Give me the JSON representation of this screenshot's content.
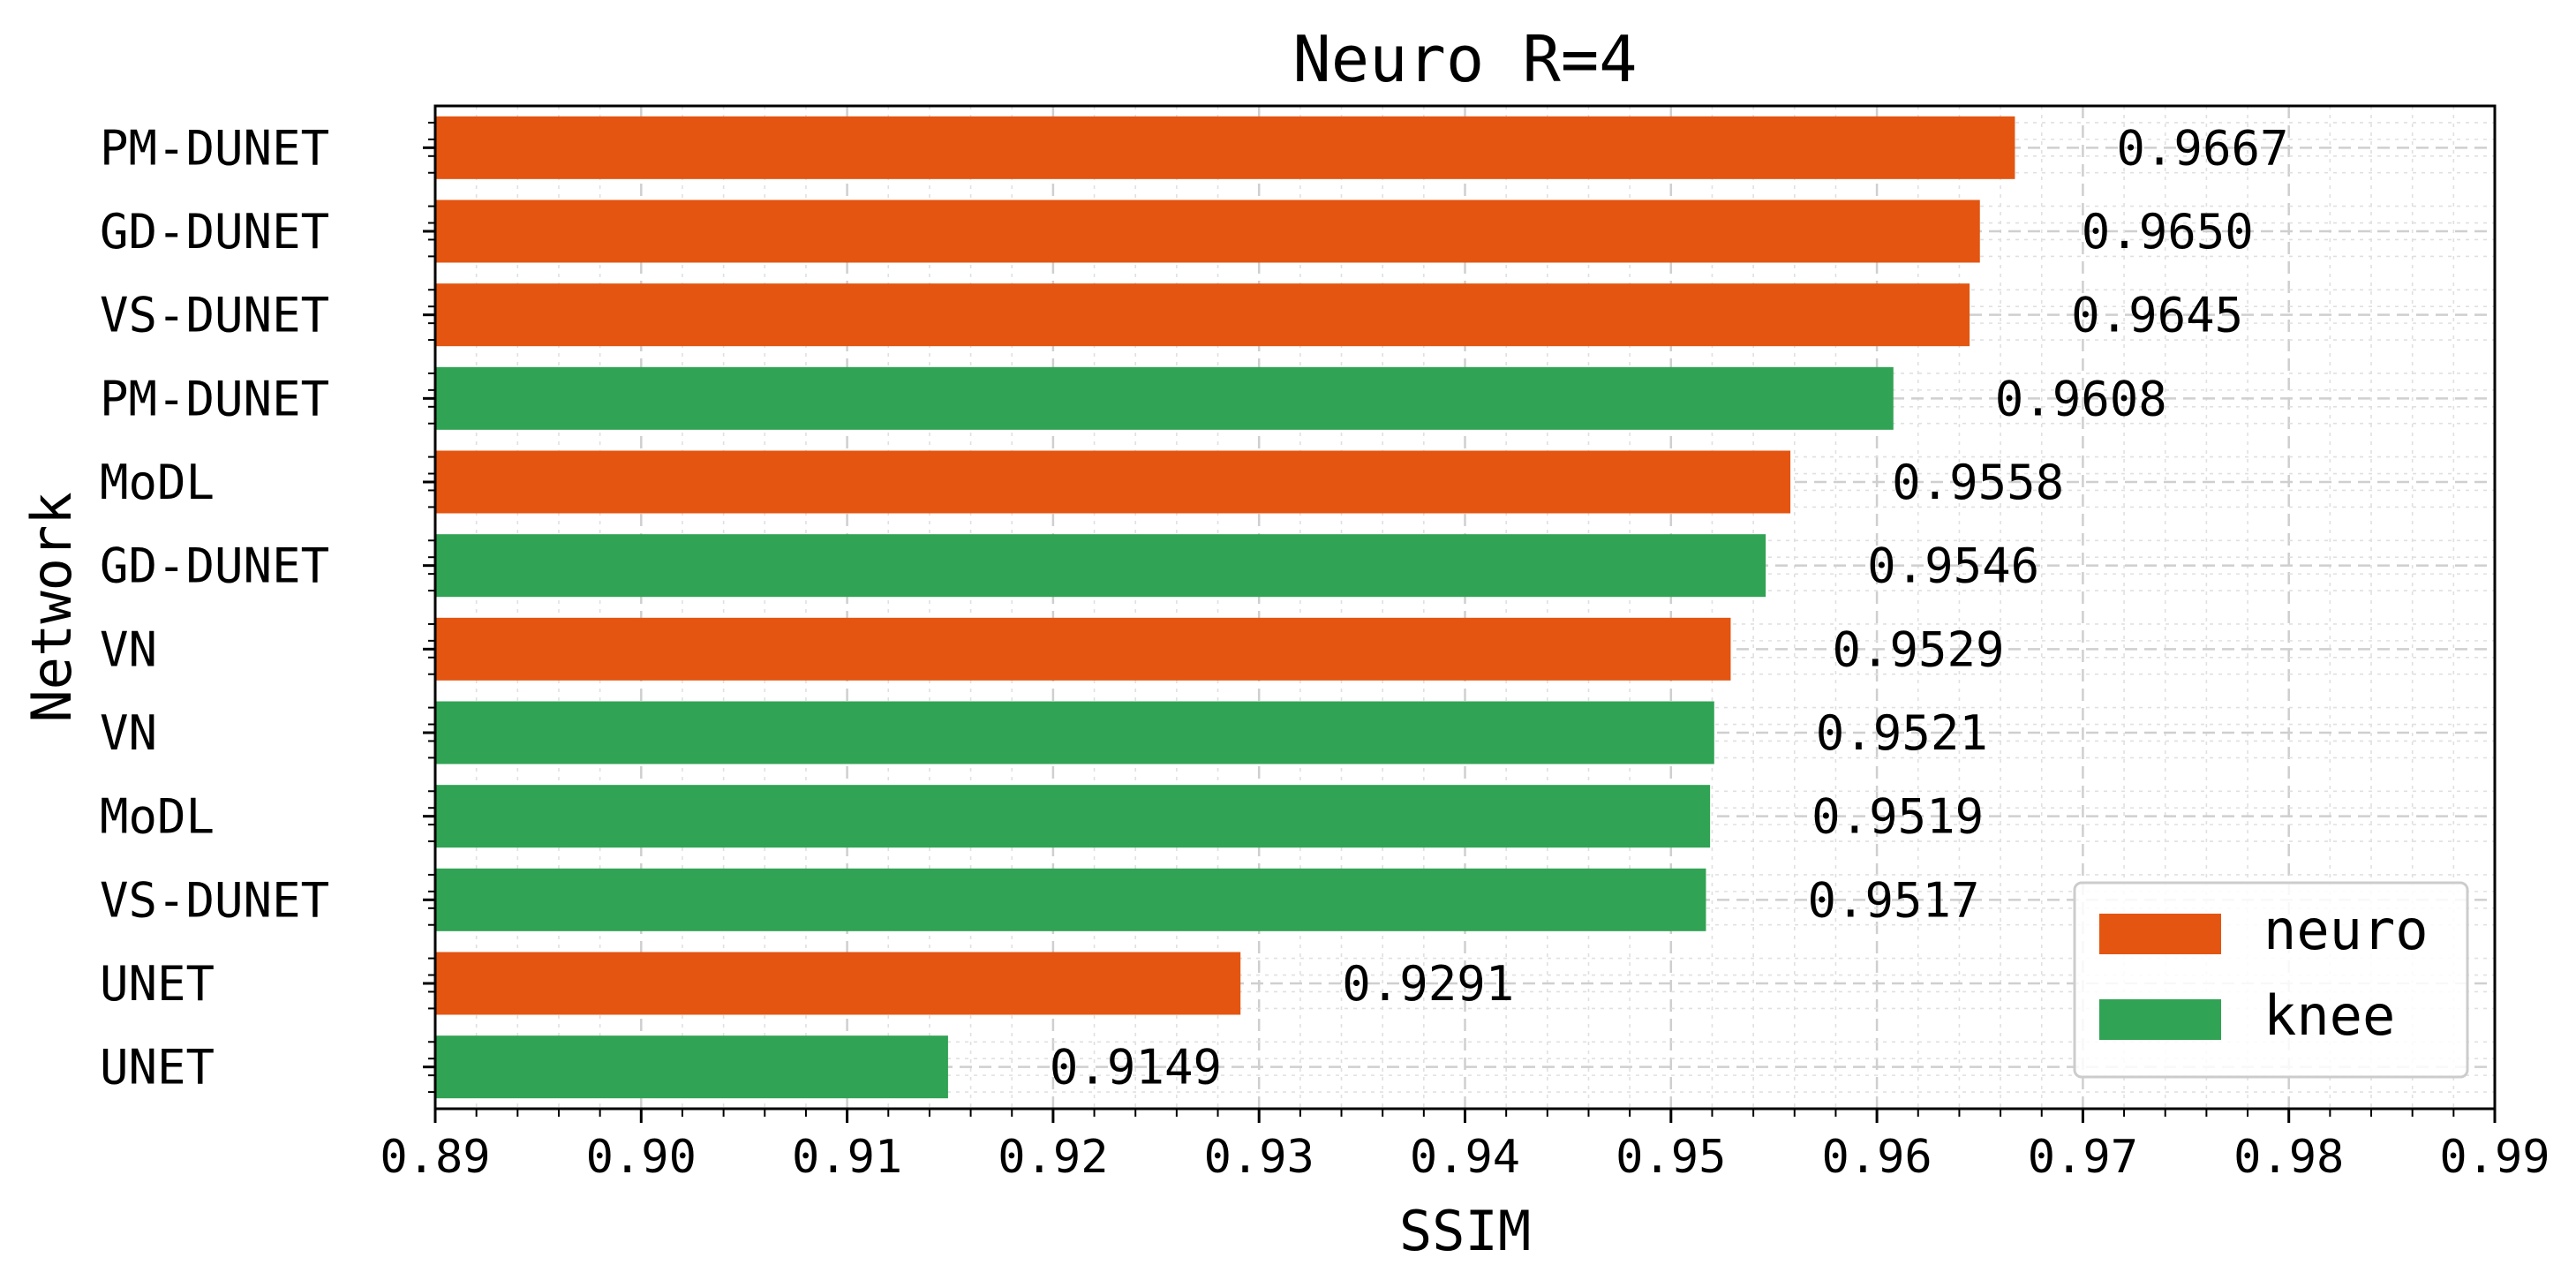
{
  "chart_data": {
    "type": "bar",
    "orientation": "horizontal",
    "title": "Neuro R=4",
    "xlabel": "SSIM",
    "ylabel": "Network",
    "xlim": [
      0.89,
      0.99
    ],
    "xticks": [
      "0.89",
      "0.90",
      "0.91",
      "0.92",
      "0.93",
      "0.94",
      "0.95",
      "0.96",
      "0.97",
      "0.98",
      "0.99"
    ],
    "grid": true,
    "legend_position": "lower-right",
    "legend": [
      {
        "name": "neuro",
        "color": "#e35511"
      },
      {
        "name": "knee",
        "color": "#31a354"
      }
    ],
    "bars": [
      {
        "category": "PM-DUNET",
        "value": 0.9667,
        "label": "0.9667",
        "series": "neuro"
      },
      {
        "category": "GD-DUNET",
        "value": 0.965,
        "label": "0.9650",
        "series": "neuro"
      },
      {
        "category": "VS-DUNET",
        "value": 0.9645,
        "label": "0.9645",
        "series": "neuro"
      },
      {
        "category": "PM-DUNET",
        "value": 0.9608,
        "label": "0.9608",
        "series": "knee"
      },
      {
        "category": "MoDL",
        "value": 0.9558,
        "label": "0.9558",
        "series": "neuro"
      },
      {
        "category": "GD-DUNET",
        "value": 0.9546,
        "label": "0.9546",
        "series": "knee"
      },
      {
        "category": "VN",
        "value": 0.9529,
        "label": "0.9529",
        "series": "neuro"
      },
      {
        "category": "VN",
        "value": 0.9521,
        "label": "0.9521",
        "series": "knee"
      },
      {
        "category": "MoDL",
        "value": 0.9519,
        "label": "0.9519",
        "series": "knee"
      },
      {
        "category": "VS-DUNET",
        "value": 0.9517,
        "label": "0.9517",
        "series": "knee"
      },
      {
        "category": "UNET",
        "value": 0.9291,
        "label": "0.9291",
        "series": "neuro"
      },
      {
        "category": "UNET",
        "value": 0.9149,
        "label": "0.9149",
        "series": "knee"
      }
    ]
  }
}
